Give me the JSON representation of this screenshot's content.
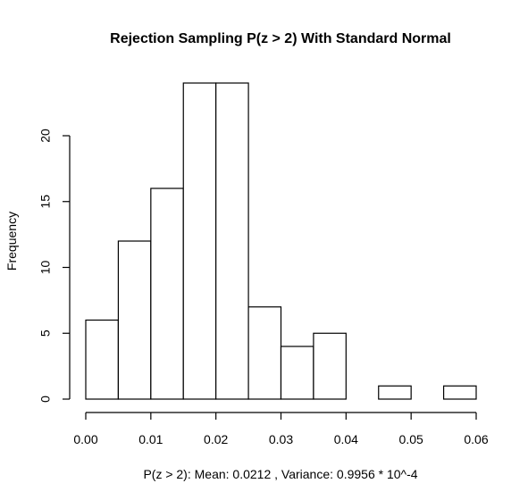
{
  "chart_data": {
    "type": "bar",
    "title": "Rejection Sampling P(z > 2) With Standard Normal",
    "xlabel": "P(z > 2): Mean:  0.0212 , Variance:  0.9956 * 10^-4",
    "ylabel": "Frequency",
    "bin_edges": [
      0.0,
      0.005,
      0.01,
      0.015,
      0.02,
      0.025,
      0.03,
      0.035,
      0.04,
      0.045,
      0.05,
      0.055,
      0.06
    ],
    "values": [
      6,
      12,
      16,
      24,
      24,
      7,
      4,
      5,
      0,
      1,
      0,
      1
    ],
    "xlim": [
      0.0,
      0.06
    ],
    "ylim": [
      0,
      20
    ],
    "x_ticks": [
      0.0,
      0.01,
      0.02,
      0.03,
      0.04,
      0.05,
      0.06
    ],
    "x_tick_labels": [
      "0.00",
      "0.01",
      "0.02",
      "0.03",
      "0.04",
      "0.05",
      "0.06"
    ],
    "y_ticks": [
      0,
      5,
      10,
      15,
      20
    ],
    "y_tick_labels": [
      "0",
      "5",
      "10",
      "15",
      "20"
    ],
    "grid": false,
    "legend": "none",
    "bar_fill": "#ffffff",
    "bar_stroke": "#000000"
  }
}
